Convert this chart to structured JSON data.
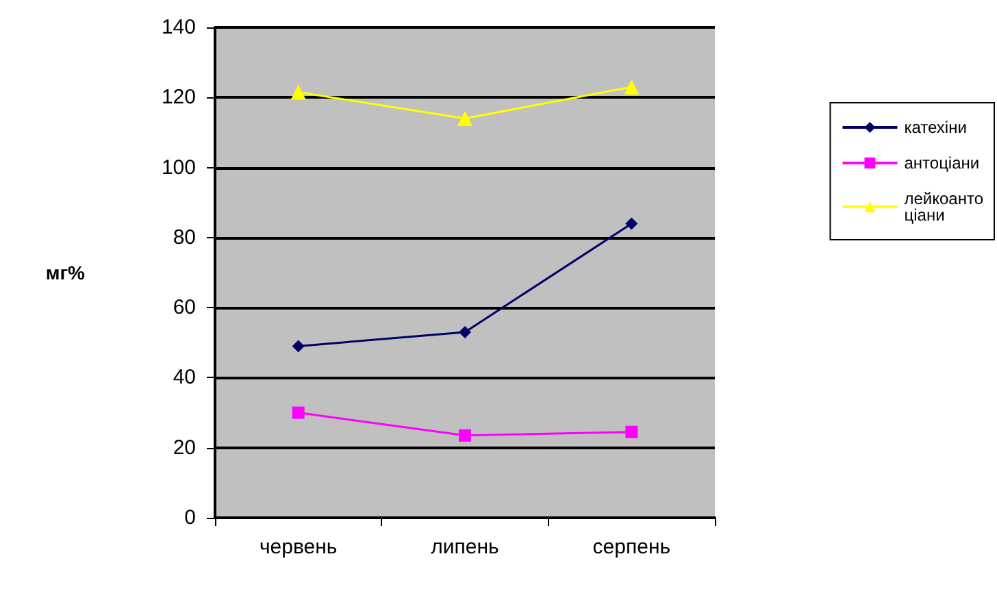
{
  "chart_data": {
    "type": "line",
    "ylabel": "мг%",
    "categories": [
      "червень",
      "липень",
      "серпень"
    ],
    "series": [
      {
        "name": "катехіни",
        "color": "#000066",
        "marker": "diamond",
        "values": [
          49,
          53,
          84
        ]
      },
      {
        "name": "антоціани",
        "color": "#ff00ff",
        "marker": "square",
        "values": [
          30,
          23.5,
          24.5
        ]
      },
      {
        "name": "лейкоантоціани",
        "color": "#ffff00",
        "marker": "triangle",
        "values": [
          121.5,
          114,
          123
        ]
      }
    ],
    "ylim": [
      0,
      140
    ],
    "yticks": [
      0,
      20,
      40,
      60,
      80,
      100,
      120,
      140
    ],
    "grid": "y",
    "legend": "right"
  }
}
